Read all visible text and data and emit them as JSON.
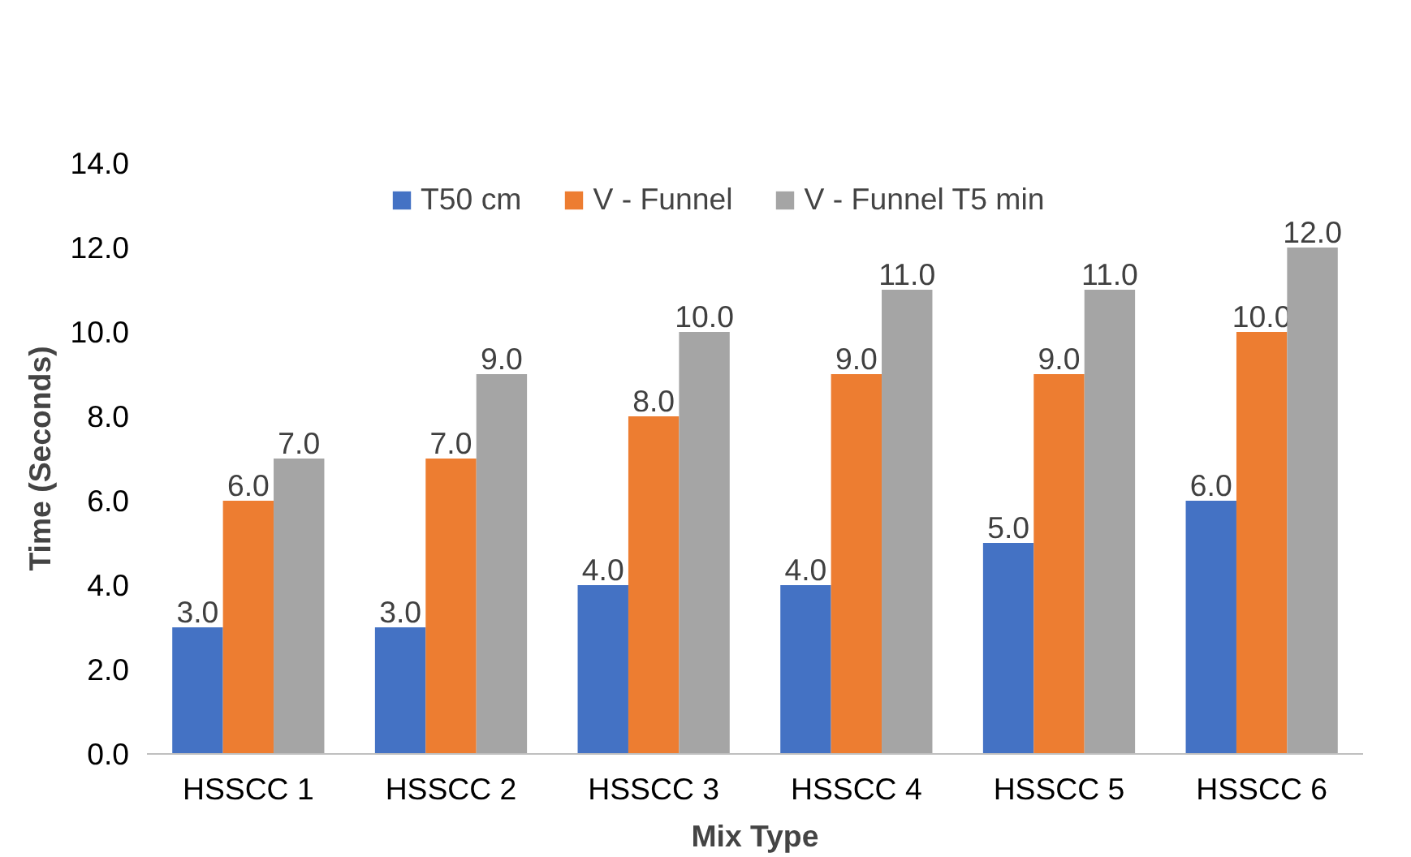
{
  "chart_data": {
    "type": "bar",
    "xlabel": "Mix Type",
    "ylabel": "Time (Seconds)",
    "categories": [
      "HSSCC 1",
      "HSSCC 2",
      "HSSCC 3",
      "HSSCC 4",
      "HSSCC 5",
      "HSSCC 6"
    ],
    "series": [
      {
        "name": "T50 cm",
        "color": "#4472c4",
        "values": [
          3,
          3,
          4,
          4,
          5,
          6
        ],
        "value_labels": [
          "3.0",
          "3.0",
          "4.0",
          "4.0",
          "5.0",
          "6.0"
        ]
      },
      {
        "name": "V - Funnel",
        "color": "#ed7d31",
        "values": [
          6,
          7,
          8,
          9,
          9,
          10
        ],
        "value_labels": [
          "6.0",
          "7.0",
          "8.0",
          "9.0",
          "9.0",
          "10.0"
        ]
      },
      {
        "name": "V - Funnel T5 min",
        "color": "#a5a5a5",
        "values": [
          7,
          9,
          10,
          11,
          11,
          12
        ],
        "value_labels": [
          "7.0",
          "9.0",
          "10.0",
          "11.0",
          "11.0",
          "12.0"
        ]
      }
    ],
    "ylim": [
      0,
      14
    ],
    "yticks": [
      {
        "value": 0,
        "label": "0.0"
      },
      {
        "value": 2,
        "label": "2.0"
      },
      {
        "value": 4,
        "label": "4.0"
      },
      {
        "value": 6,
        "label": "6.0"
      },
      {
        "value": 8,
        "label": "8.0"
      },
      {
        "value": 10,
        "label": "10.0"
      },
      {
        "value": 12,
        "label": "12.0"
      },
      {
        "value": 14,
        "label": "14.0"
      }
    ],
    "legend": "top"
  }
}
